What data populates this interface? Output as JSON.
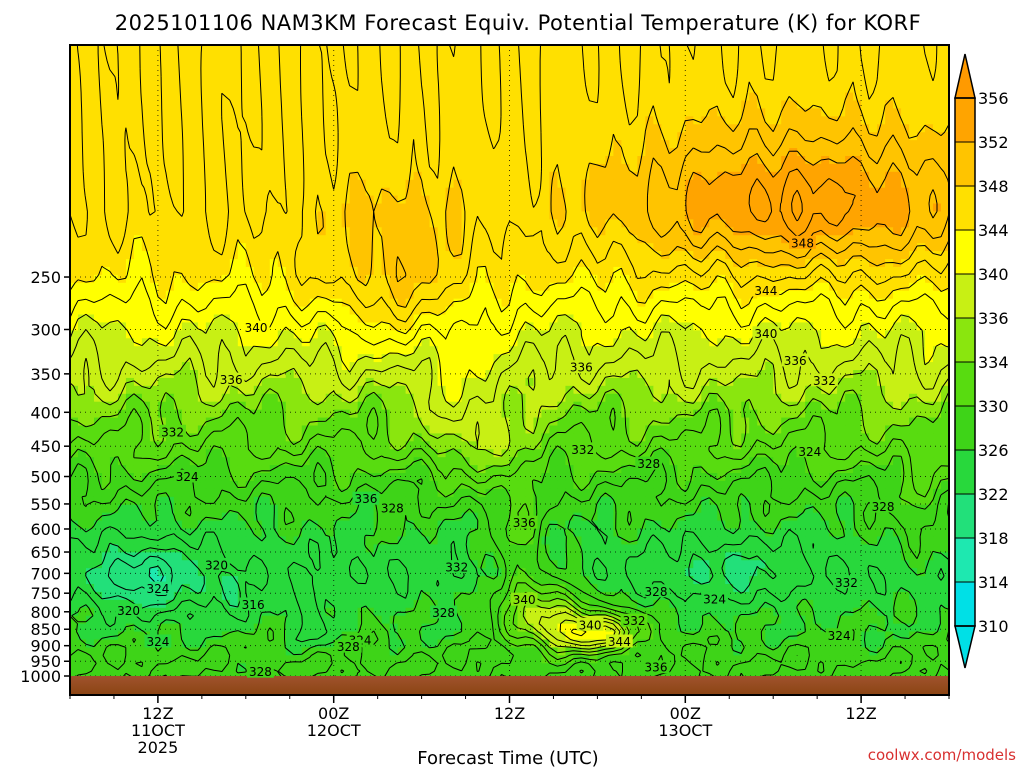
{
  "chart_data": {
    "type": "heatmap",
    "title": "2025101106 NAM3KM Forecast Equiv. Potential Temperature (K) for KORF",
    "xlabel": "Forecast Time (UTC)",
    "ylabel": "",
    "y_axis_reversed": true,
    "y_ticks": [
      {
        "value": 250,
        "label": "250"
      },
      {
        "value": 300,
        "label": "300"
      },
      {
        "value": 350,
        "label": "350"
      },
      {
        "value": 400,
        "label": "400"
      },
      {
        "value": 450,
        "label": "450"
      },
      {
        "value": 500,
        "label": "500"
      },
      {
        "value": 550,
        "label": "550"
      },
      {
        "value": 600,
        "label": "600"
      },
      {
        "value": 650,
        "label": "650"
      },
      {
        "value": 700,
        "label": "700"
      },
      {
        "value": 750,
        "label": "750"
      },
      {
        "value": 800,
        "label": "800"
      },
      {
        "value": 850,
        "label": "850"
      },
      {
        "value": 900,
        "label": "900"
      },
      {
        "value": 950,
        "label": "950"
      },
      {
        "value": 1000,
        "label": "1000"
      }
    ],
    "x_ticks": [
      {
        "hour": 6,
        "lines": [
          "12Z",
          "11OCT",
          "2025"
        ]
      },
      {
        "hour": 18,
        "lines": [
          "00Z",
          "12OCT"
        ]
      },
      {
        "hour": 30,
        "lines": [
          "12Z"
        ]
      },
      {
        "hour": 42,
        "lines": [
          "00Z",
          "13OCT"
        ]
      },
      {
        "hour": 54,
        "lines": [
          "12Z"
        ]
      }
    ],
    "x_range_hours": [
      0,
      60
    ],
    "grid": true,
    "colorbar": {
      "levels": [
        310,
        314,
        318,
        322,
        326,
        330,
        334,
        336,
        340,
        344,
        348,
        352,
        356
      ],
      "colors": [
        "#00e0e6",
        "#1ee8b0",
        "#22e07a",
        "#28d83c",
        "#3ed418",
        "#58dc10",
        "#8ae60e",
        "#c8f014",
        "#ffff00",
        "#ffe000",
        "#ffc400",
        "#ffa400"
      ]
    },
    "z_profile": [
      {
        "hpa": 200,
        "theta_e": 346
      },
      {
        "hpa": 250,
        "theta_e": 344
      },
      {
        "hpa": 300,
        "theta_e": 340
      },
      {
        "hpa": 350,
        "theta_e": 337
      },
      {
        "hpa": 400,
        "theta_e": 334
      },
      {
        "hpa": 450,
        "theta_e": 332
      },
      {
        "hpa": 500,
        "theta_e": 329
      },
      {
        "hpa": 550,
        "theta_e": 327
      },
      {
        "hpa": 600,
        "theta_e": 326
      },
      {
        "hpa": 650,
        "theta_e": 325
      },
      {
        "hpa": 700,
        "theta_e": 324
      },
      {
        "hpa": 750,
        "theta_e": 325
      },
      {
        "hpa": 800,
        "theta_e": 326
      },
      {
        "hpa": 850,
        "theta_e": 326
      },
      {
        "hpa": 900,
        "theta_e": 327
      },
      {
        "hpa": 950,
        "theta_e": 328
      },
      {
        "hpa": 1000,
        "theta_e": 328
      }
    ],
    "features": [
      {
        "name": "upper-warm-core",
        "hour": 50,
        "hpa": 195,
        "amp": 9,
        "hour_width": 12,
        "hpa_width": 45
      },
      {
        "name": "upper-plume",
        "hour": 22,
        "hpa": 250,
        "amp": 5,
        "hour_width": 5,
        "hpa_width": 70
      },
      {
        "name": "midlevel-moist-tongue",
        "hour": 27,
        "hpa": 420,
        "amp": 5,
        "hour_width": 3,
        "hpa_width": 90
      },
      {
        "name": "moist-tower",
        "hour": 30.5,
        "hpa": 600,
        "amp": 5,
        "hour_width": 1.6,
        "hpa_width": 140
      },
      {
        "name": "lowlevel-warm-pool",
        "hour": 35.5,
        "hpa": 860,
        "amp": 15,
        "hour_width": 3.5,
        "hpa_width": 60
      },
      {
        "name": "lowlevel-warm-shoulder",
        "hour": 32,
        "hpa": 790,
        "amp": 9,
        "hour_width": 3,
        "hpa_width": 90
      },
      {
        "name": "cold-pocket-west",
        "hour": 5,
        "hpa": 710,
        "amp": -6,
        "hour_width": 4,
        "hpa_width": 90
      },
      {
        "name": "cold-pocket-east",
        "hour": 45,
        "hpa": 690,
        "amp": -3,
        "hour_width": 5,
        "hpa_width": 80
      },
      {
        "name": "cold-spike",
        "hour": 11,
        "hpa": 760,
        "amp": -5,
        "hour_width": 0.8,
        "hpa_width": 60
      },
      {
        "name": "cold-spike-2",
        "hour": 16.5,
        "hpa": 830,
        "amp": -4,
        "hour_width": 1.0,
        "hpa_width": 80
      },
      {
        "name": "east-moist-column",
        "hour": 58,
        "hpa": 560,
        "amp": 3,
        "hour_width": 2,
        "hpa_width": 150
      }
    ],
    "contour_labels": [
      {
        "text": "348",
        "hour": 50,
        "hpa": 222
      },
      {
        "text": "344",
        "hour": 47.5,
        "hpa": 262
      },
      {
        "text": "340",
        "hour": 47.5,
        "hpa": 304
      },
      {
        "text": "336",
        "hour": 49.5,
        "hpa": 334
      },
      {
        "text": "332",
        "hour": 51.5,
        "hpa": 358
      },
      {
        "text": "340",
        "hour": 12.7,
        "hpa": 298
      },
      {
        "text": "336",
        "hour": 11,
        "hpa": 357
      },
      {
        "text": "332",
        "hour": 7,
        "hpa": 428
      },
      {
        "text": "324",
        "hour": 8,
        "hpa": 500
      },
      {
        "text": "336",
        "hour": 34.9,
        "hpa": 342
      },
      {
        "text": "332",
        "hour": 35,
        "hpa": 455
      },
      {
        "text": "328",
        "hour": 39.5,
        "hpa": 478
      },
      {
        "text": "324",
        "hour": 50.5,
        "hpa": 458
      },
      {
        "text": "336",
        "hour": 20.2,
        "hpa": 540
      },
      {
        "text": "328",
        "hour": 22,
        "hpa": 558
      },
      {
        "text": "336",
        "hour": 31,
        "hpa": 587
      },
      {
        "text": "328",
        "hour": 55.5,
        "hpa": 555
      },
      {
        "text": "332",
        "hour": 26.4,
        "hpa": 685
      },
      {
        "text": "320",
        "hour": 10,
        "hpa": 680
      },
      {
        "text": "324",
        "hour": 6,
        "hpa": 738
      },
      {
        "text": "316",
        "hour": 12.5,
        "hpa": 780
      },
      {
        "text": "320",
        "hour": 4,
        "hpa": 797
      },
      {
        "text": "328",
        "hour": 40,
        "hpa": 745
      },
      {
        "text": "324",
        "hour": 44,
        "hpa": 765
      },
      {
        "text": "340",
        "hour": 31,
        "hpa": 767
      },
      {
        "text": "332",
        "hour": 53,
        "hpa": 722
      },
      {
        "text": "328",
        "hour": 25.5,
        "hpa": 802
      },
      {
        "text": "340",
        "hour": 35.5,
        "hpa": 837
      },
      {
        "text": "332",
        "hour": 38.5,
        "hpa": 825
      },
      {
        "text": "324",
        "hour": 52.5,
        "hpa": 868
      },
      {
        "text": "324",
        "hour": 6,
        "hpa": 887
      },
      {
        "text": "324",
        "hour": 19.8,
        "hpa": 882
      },
      {
        "text": "328",
        "hour": 19,
        "hpa": 903
      },
      {
        "text": "344",
        "hour": 37.5,
        "hpa": 887
      },
      {
        "text": "336",
        "hour": 40,
        "hpa": 970
      },
      {
        "text": "328",
        "hour": 13,
        "hpa": 985
      }
    ]
  },
  "credit": "coolwx.com/models"
}
